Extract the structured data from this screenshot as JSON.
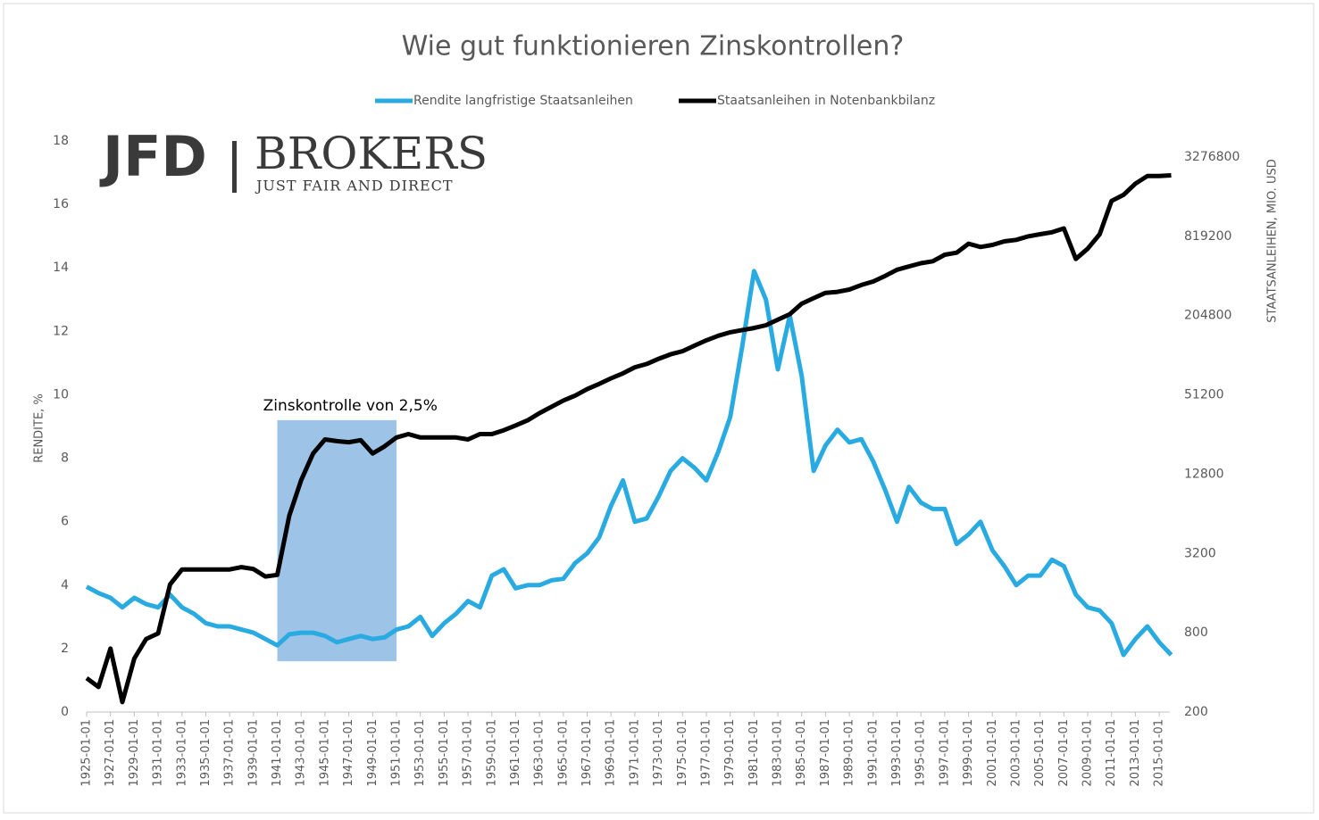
{
  "chart_data": {
    "type": "line",
    "title": "Wie gut funktionieren Zinskontrollen?",
    "ylabel": "RENDITE, %",
    "y2label": "STAATSANLEIHEN, MIO. USD",
    "watermark": {
      "brand": "JFD",
      "name": "BROKERS",
      "tagline": "JUST FAIR AND DIRECT"
    },
    "annotation": {
      "text": "Zinskontrolle von 2,5%",
      "x": [
        "1941-01-01",
        "1951-01-01"
      ],
      "y": [
        1.6,
        9.2
      ],
      "color": "#9dc3e6"
    },
    "legend": "top",
    "x": [
      "1925-01-01",
      "1926-01-01",
      "1927-01-01",
      "1928-01-01",
      "1929-01-01",
      "1930-01-01",
      "1931-01-01",
      "1932-01-01",
      "1933-01-01",
      "1934-01-01",
      "1935-01-01",
      "1936-01-01",
      "1937-01-01",
      "1938-01-01",
      "1939-01-01",
      "1940-01-01",
      "1941-01-01",
      "1942-01-01",
      "1943-01-01",
      "1944-01-01",
      "1945-01-01",
      "1946-01-01",
      "1947-01-01",
      "1948-01-01",
      "1949-01-01",
      "1950-01-01",
      "1951-01-01",
      "1952-01-01",
      "1953-01-01",
      "1954-01-01",
      "1955-01-01",
      "1956-01-01",
      "1957-01-01",
      "1958-01-01",
      "1959-01-01",
      "1960-01-01",
      "1961-01-01",
      "1962-01-01",
      "1963-01-01",
      "1964-01-01",
      "1965-01-01",
      "1966-01-01",
      "1967-01-01",
      "1968-01-01",
      "1969-01-01",
      "1970-01-01",
      "1971-01-01",
      "1972-01-01",
      "1973-01-01",
      "1974-01-01",
      "1975-01-01",
      "1976-01-01",
      "1977-01-01",
      "1978-01-01",
      "1979-01-01",
      "1980-01-01",
      "1981-01-01",
      "1982-01-01",
      "1983-01-01",
      "1984-01-01",
      "1985-01-01",
      "1986-01-01",
      "1987-01-01",
      "1988-01-01",
      "1989-01-01",
      "1990-01-01",
      "1991-01-01",
      "1992-01-01",
      "1993-01-01",
      "1994-01-01",
      "1995-01-01",
      "1996-01-01",
      "1997-01-01",
      "1998-01-01",
      "1999-01-01",
      "2000-01-01",
      "2001-01-01",
      "2002-01-01",
      "2003-01-01",
      "2004-01-01",
      "2005-01-01",
      "2006-01-01",
      "2007-01-01",
      "2008-01-01",
      "2009-01-01",
      "2010-01-01",
      "2011-01-01",
      "2012-01-01",
      "2013-01-01",
      "2014-01-01",
      "2015-01-01",
      "2016-01-01"
    ],
    "series": [
      {
        "name": "Rendite langfristige Staatsanleihen",
        "color": "#29abe2",
        "axis": "y",
        "values": [
          3.95,
          3.75,
          3.6,
          3.3,
          3.6,
          3.4,
          3.3,
          3.7,
          3.3,
          3.1,
          2.8,
          2.7,
          2.7,
          2.6,
          2.5,
          2.3,
          2.1,
          2.45,
          2.5,
          2.5,
          2.4,
          2.2,
          2.3,
          2.4,
          2.3,
          2.35,
          2.6,
          2.7,
          3.0,
          2.4,
          2.8,
          3.1,
          3.5,
          3.3,
          4.3,
          4.5,
          3.9,
          4.0,
          4.0,
          4.15,
          4.2,
          4.7,
          5.0,
          5.5,
          6.5,
          7.3,
          6.0,
          6.1,
          6.8,
          7.6,
          8.0,
          7.7,
          7.3,
          8.2,
          9.3,
          11.5,
          13.9,
          13.0,
          10.8,
          12.5,
          10.6,
          7.6,
          8.4,
          8.9,
          8.5,
          8.6,
          7.9,
          7.0,
          6.0,
          7.1,
          6.6,
          6.4,
          6.4,
          5.3,
          5.6,
          6.0,
          5.1,
          4.6,
          4.0,
          4.3,
          4.3,
          4.8,
          4.6,
          3.7,
          3.3,
          3.2,
          2.8,
          1.8,
          2.3,
          2.7,
          2.2,
          1.8
        ]
      },
      {
        "name": "Staatsanleihen in Notenbankbilanz",
        "color": "#000000",
        "axis": "y2",
        "values": [
          362,
          310,
          606,
          238,
          510,
          718,
          790,
          1860,
          2420,
          2420,
          2420,
          2420,
          2420,
          2520,
          2440,
          2140,
          2200,
          6180,
          11500,
          18400,
          23500,
          22800,
          22400,
          23200,
          18400,
          20800,
          24300,
          25800,
          24300,
          24300,
          24300,
          24300,
          23500,
          25800,
          25800,
          27600,
          30000,
          32800,
          37200,
          41600,
          46400,
          50600,
          56600,
          62000,
          68400,
          74600,
          83000,
          88000,
          96200,
          104000,
          110000,
          121000,
          133000,
          144000,
          153000,
          159000,
          165000,
          173000,
          191000,
          210000,
          252000,
          278000,
          305000,
          310000,
          323000,
          350000,
          372000,
          410000,
          457000,
          484000,
          512000,
          530000,
          594000,
          615000,
          720000,
          680000,
          705000,
          750000,
          770000,
          819000,
          850000,
          880000,
          940000,
          552000,
          660000,
          850000,
          1520000,
          1690000,
          2060000,
          2350000,
          2350000,
          2380000
        ]
      }
    ],
    "xlim": [
      "1925-01-01",
      "2017-01-01"
    ],
    "xticks": [
      "1925-01-01",
      "1927-01-01",
      "1929-01-01",
      "1931-01-01",
      "1933-01-01",
      "1935-01-01",
      "1937-01-01",
      "1939-01-01",
      "1941-01-01",
      "1943-01-01",
      "1945-01-01",
      "1947-01-01",
      "1949-01-01",
      "1951-01-01",
      "1953-01-01",
      "1955-01-01",
      "1957-01-01",
      "1959-01-01",
      "1961-01-01",
      "1963-01-01",
      "1965-01-01",
      "1967-01-01",
      "1969-01-01",
      "1971-01-01",
      "1973-01-01",
      "1975-01-01",
      "1977-01-01",
      "1979-01-01",
      "1981-01-01",
      "1983-01-01",
      "1985-01-01",
      "1987-01-01",
      "1989-01-01",
      "1991-01-01",
      "1993-01-01",
      "1995-01-01",
      "1997-01-01",
      "1999-01-01",
      "2001-01-01",
      "2003-01-01",
      "2005-01-01",
      "2007-01-01",
      "2009-01-01",
      "2011-01-01",
      "2013-01-01",
      "2015-01-01"
    ],
    "ylim": [
      0,
      18
    ],
    "yticks": [
      0,
      2,
      4,
      6,
      8,
      10,
      12,
      14,
      16,
      18
    ],
    "y2lim": [
      200,
      3276800
    ],
    "y2ticks": [
      200,
      800,
      3200,
      12800,
      51200,
      204800,
      819200,
      3276800
    ],
    "y2scale": "log",
    "grid": false
  }
}
